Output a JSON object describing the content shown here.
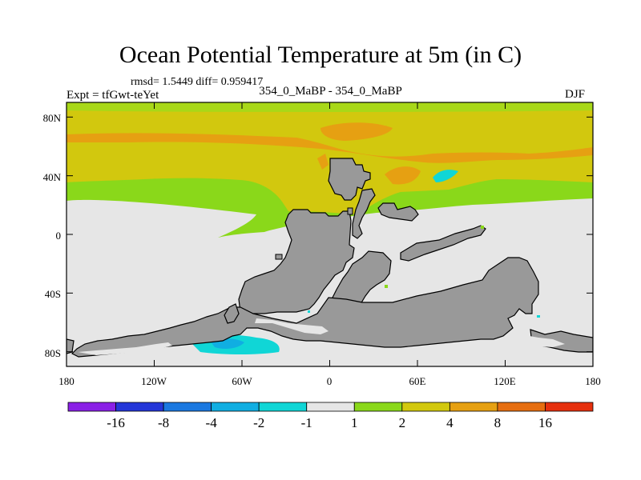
{
  "title": "Ocean Potential Temperature at 5m (in C)",
  "stats": "rmsd= 1.5449 diff= 0.959417",
  "experiment": "Expt = tfGwt-teYet",
  "case": "354_0_MaBP - 354_0_MaBP",
  "season": "DJF",
  "axes": {
    "lon_ticks": [
      "180",
      "120W",
      "60W",
      "0",
      "60E",
      "120E",
      "180"
    ],
    "lat_ticks": [
      "80N",
      "40N",
      "0",
      "40S",
      "80S"
    ]
  },
  "colors": {
    "land": "#999999",
    "near_zero": "#e6e6e6"
  },
  "colorbar": {
    "labels": [
      "-16",
      "-8",
      "-4",
      "-2",
      "-1",
      "1",
      "2",
      "4",
      "8",
      "16"
    ],
    "colors": [
      "#8a20e6",
      "#2436d8",
      "#1a78e0",
      "#10aee2",
      "#10d6d6",
      "#e6e6e6",
      "#8ad81a",
      "#d2c80e",
      "#e6a012",
      "#e66e10",
      "#e6300e"
    ]
  }
}
